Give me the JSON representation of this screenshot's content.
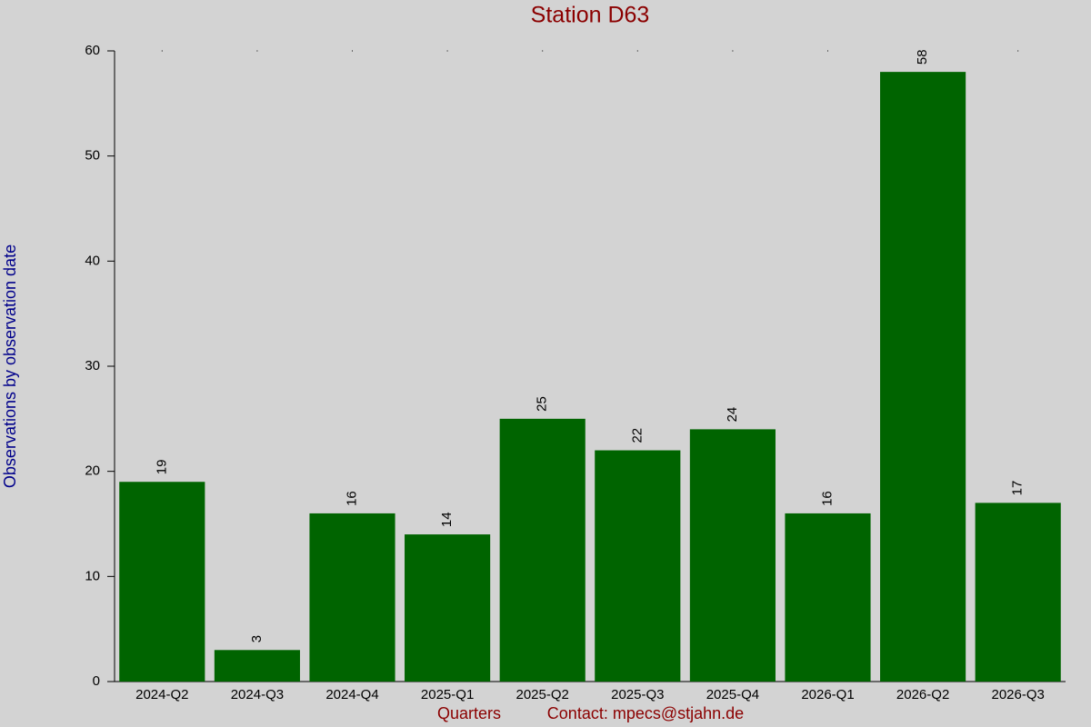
{
  "chart_data": {
    "type": "bar",
    "title": "Station D63",
    "x_label": "Quarters",
    "contact": "Contact: mpecs@stjahn.de",
    "y_label": "Observations by observation date",
    "categories": [
      "2024-Q2",
      "2024-Q3",
      "2024-Q4",
      "2025-Q1",
      "2025-Q2",
      "2025-Q3",
      "2025-Q4",
      "2026-Q1",
      "2026-Q2",
      "2026-Q3"
    ],
    "values": [
      19,
      3,
      16,
      14,
      25,
      22,
      24,
      16,
      58,
      17
    ],
    "color": "#006400",
    "ylim": [
      0,
      60
    ],
    "yticks": [
      0,
      10,
      20,
      30,
      40,
      50,
      60
    ]
  }
}
